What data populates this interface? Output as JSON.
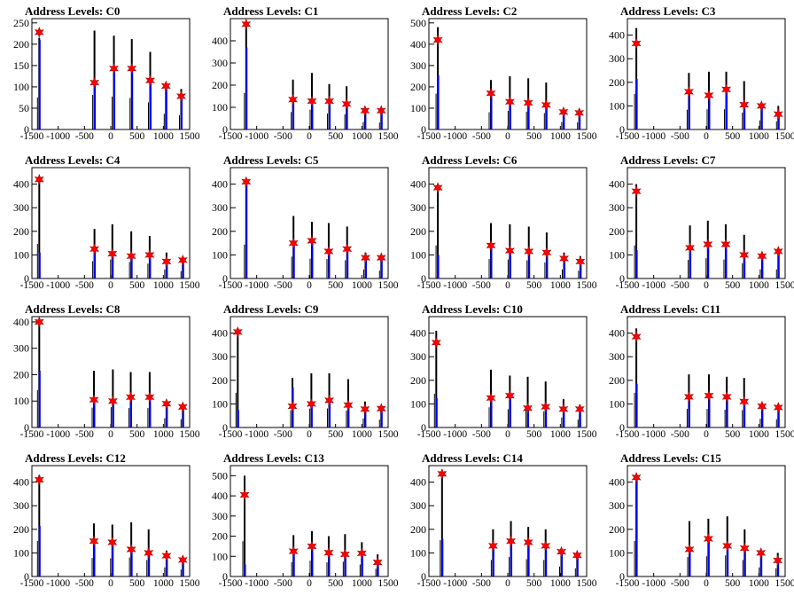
{
  "colors": {
    "black_hist": "#000000",
    "blue_hist": "#0000ff",
    "marker": "#ff0000"
  },
  "chart_data": [
    {
      "type": "bar",
      "title": "Address Levels: C0",
      "xlim": [
        -1500,
        1500
      ],
      "ylim": [
        0,
        260
      ],
      "yticks": [
        0,
        50,
        100,
        150,
        200,
        250
      ],
      "xticks": [
        -1500,
        -1000,
        -500,
        0,
        500,
        1000,
        1500
      ],
      "peaks": [
        {
          "x": -1360,
          "black": 215,
          "blue": 210,
          "marker": 228
        },
        {
          "x": -310,
          "black": 232,
          "blue": 110,
          "marker": 110
        },
        {
          "x": 60,
          "black": 220,
          "blue": 145,
          "marker": 143
        },
        {
          "x": 400,
          "black": 212,
          "blue": 145,
          "marker": 143
        },
        {
          "x": 750,
          "black": 182,
          "blue": 118,
          "marker": 115
        },
        {
          "x": 1050,
          "black": 105,
          "blue": 100,
          "marker": 102
        },
        {
          "x": 1340,
          "black": 95,
          "blue": 75,
          "marker": 78
        }
      ]
    },
    {
      "type": "bar",
      "title": "Address Levels: C1",
      "xlim": [
        -1500,
        1500
      ],
      "ylim": [
        0,
        500
      ],
      "yticks": [
        0,
        100,
        200,
        300,
        400
      ],
      "xticks": [
        -1500,
        -1000,
        -500,
        0,
        500,
        1000,
        1500
      ],
      "peaks": [
        {
          "x": -1200,
          "black": 470,
          "blue": 370,
          "marker": 475
        },
        {
          "x": -310,
          "black": 225,
          "blue": 135,
          "marker": 135
        },
        {
          "x": 50,
          "black": 255,
          "blue": 130,
          "marker": 128
        },
        {
          "x": 380,
          "black": 205,
          "blue": 130,
          "marker": 128
        },
        {
          "x": 710,
          "black": 195,
          "blue": 115,
          "marker": 115
        },
        {
          "x": 1060,
          "black": 95,
          "blue": 90,
          "marker": 85
        },
        {
          "x": 1370,
          "black": 90,
          "blue": 82,
          "marker": 85
        }
      ]
    },
    {
      "type": "bar",
      "title": "Address Levels: C2",
      "xlim": [
        -1500,
        1500
      ],
      "ylim": [
        0,
        520
      ],
      "yticks": [
        0,
        100,
        200,
        300,
        400,
        500
      ],
      "xticks": [
        -1500,
        -1000,
        -500,
        0,
        500,
        1000,
        1500
      ],
      "peaks": [
        {
          "x": -1330,
          "black": 480,
          "blue": 255,
          "marker": 420
        },
        {
          "x": -320,
          "black": 232,
          "blue": 170,
          "marker": 170
        },
        {
          "x": 40,
          "black": 250,
          "blue": 130,
          "marker": 130
        },
        {
          "x": 390,
          "black": 240,
          "blue": 130,
          "marker": 125
        },
        {
          "x": 730,
          "black": 220,
          "blue": 115,
          "marker": 115
        },
        {
          "x": 1060,
          "black": 100,
          "blue": 82,
          "marker": 82
        },
        {
          "x": 1360,
          "black": 95,
          "blue": 75,
          "marker": 78
        }
      ]
    },
    {
      "type": "bar",
      "title": "Address Levels: C3",
      "xlim": [
        -1500,
        1500
      ],
      "ylim": [
        0,
        470
      ],
      "yticks": [
        0,
        100,
        200,
        300,
        400
      ],
      "xticks": [
        -1500,
        -1000,
        -500,
        0,
        500,
        1000,
        1500
      ],
      "peaks": [
        {
          "x": -1330,
          "black": 430,
          "blue": 215,
          "marker": 365
        },
        {
          "x": -330,
          "black": 240,
          "blue": 160,
          "marker": 160
        },
        {
          "x": 50,
          "black": 245,
          "blue": 150,
          "marker": 145
        },
        {
          "x": 380,
          "black": 245,
          "blue": 170,
          "marker": 170
        },
        {
          "x": 720,
          "black": 205,
          "blue": 105,
          "marker": 105
        },
        {
          "x": 1050,
          "black": 110,
          "blue": 100,
          "marker": 100
        },
        {
          "x": 1370,
          "black": 100,
          "blue": 65,
          "marker": 65
        }
      ]
    },
    {
      "type": "bar",
      "title": "Address Levels: C4",
      "xlim": [
        -1500,
        1500
      ],
      "ylim": [
        0,
        470
      ],
      "yticks": [
        0,
        100,
        200,
        300,
        400
      ],
      "xticks": [
        -1500,
        -1000,
        -500,
        0,
        500,
        1000,
        1500
      ],
      "peaks": [
        {
          "x": -1360,
          "black": 420,
          "blue": 110,
          "marker": 420
        },
        {
          "x": -310,
          "black": 210,
          "blue": 120,
          "marker": 125
        },
        {
          "x": 30,
          "black": 230,
          "blue": 110,
          "marker": 105
        },
        {
          "x": 390,
          "black": 200,
          "blue": 95,
          "marker": 95
        },
        {
          "x": 740,
          "black": 180,
          "blue": 100,
          "marker": 100
        },
        {
          "x": 1060,
          "black": 110,
          "blue": 75,
          "marker": 72
        },
        {
          "x": 1370,
          "black": 90,
          "blue": 80,
          "marker": 78
        }
      ]
    },
    {
      "type": "bar",
      "title": "Address Levels: C5",
      "xlim": [
        -1500,
        1500
      ],
      "ylim": [
        0,
        470
      ],
      "yticks": [
        0,
        100,
        200,
        300,
        400
      ],
      "xticks": [
        -1500,
        -1000,
        -500,
        0,
        500,
        1000,
        1500
      ],
      "peaks": [
        {
          "x": -1200,
          "black": 410,
          "blue": 400,
          "marker": 410
        },
        {
          "x": -300,
          "black": 265,
          "blue": 150,
          "marker": 150
        },
        {
          "x": 50,
          "black": 240,
          "blue": 160,
          "marker": 160
        },
        {
          "x": 370,
          "black": 235,
          "blue": 115,
          "marker": 115
        },
        {
          "x": 720,
          "black": 220,
          "blue": 125,
          "marker": 125
        },
        {
          "x": 1070,
          "black": 110,
          "blue": 90,
          "marker": 88
        },
        {
          "x": 1370,
          "black": 95,
          "blue": 85,
          "marker": 88
        }
      ]
    },
    {
      "type": "bar",
      "title": "Address Levels: C6",
      "xlim": [
        -1500,
        1500
      ],
      "ylim": [
        0,
        470
      ],
      "yticks": [
        0,
        100,
        200,
        300,
        400
      ],
      "xticks": [
        -1500,
        -1000,
        -500,
        0,
        500,
        1000,
        1500
      ],
      "peaks": [
        {
          "x": -1330,
          "black": 400,
          "blue": 100,
          "marker": 385
        },
        {
          "x": -320,
          "black": 235,
          "blue": 140,
          "marker": 140
        },
        {
          "x": 40,
          "black": 230,
          "blue": 120,
          "marker": 118
        },
        {
          "x": 400,
          "black": 220,
          "blue": 115,
          "marker": 115
        },
        {
          "x": 740,
          "black": 195,
          "blue": 110,
          "marker": 110
        },
        {
          "x": 1070,
          "black": 110,
          "blue": 85,
          "marker": 85
        },
        {
          "x": 1380,
          "black": 95,
          "blue": 75,
          "marker": 72
        }
      ]
    },
    {
      "type": "bar",
      "title": "Address Levels: C7",
      "xlim": [
        -1500,
        1500
      ],
      "ylim": [
        0,
        470
      ],
      "yticks": [
        0,
        100,
        200,
        300,
        400
      ],
      "xticks": [
        -1500,
        -1000,
        -500,
        0,
        500,
        1000,
        1500
      ],
      "peaks": [
        {
          "x": -1330,
          "black": 400,
          "blue": 120,
          "marker": 370
        },
        {
          "x": -310,
          "black": 225,
          "blue": 130,
          "marker": 130
        },
        {
          "x": 30,
          "black": 245,
          "blue": 145,
          "marker": 145
        },
        {
          "x": 370,
          "black": 230,
          "blue": 145,
          "marker": 145
        },
        {
          "x": 720,
          "black": 185,
          "blue": 100,
          "marker": 100
        },
        {
          "x": 1060,
          "black": 110,
          "blue": 95,
          "marker": 95
        },
        {
          "x": 1370,
          "black": 110,
          "blue": 115,
          "marker": 115
        }
      ]
    },
    {
      "type": "bar",
      "title": "Address Levels: C8",
      "xlim": [
        -1500,
        1500
      ],
      "ylim": [
        0,
        420
      ],
      "yticks": [
        0,
        100,
        200,
        300,
        400
      ],
      "xticks": [
        -1500,
        -1000,
        -500,
        0,
        500,
        1000,
        1500
      ],
      "peaks": [
        {
          "x": -1360,
          "black": 405,
          "blue": 215,
          "marker": 400
        },
        {
          "x": -320,
          "black": 215,
          "blue": 105,
          "marker": 105
        },
        {
          "x": 40,
          "black": 220,
          "blue": 100,
          "marker": 100
        },
        {
          "x": 380,
          "black": 210,
          "blue": 115,
          "marker": 115
        },
        {
          "x": 740,
          "black": 210,
          "blue": 115,
          "marker": 115
        },
        {
          "x": 1060,
          "black": 100,
          "blue": 90,
          "marker": 90
        },
        {
          "x": 1370,
          "black": 90,
          "blue": 80,
          "marker": 78
        }
      ]
    },
    {
      "type": "bar",
      "title": "Address Levels: C9",
      "xlim": [
        -1500,
        1500
      ],
      "ylim": [
        0,
        470
      ],
      "yticks": [
        0,
        100,
        200,
        300,
        400
      ],
      "xticks": [
        -1500,
        -1000,
        -500,
        0,
        500,
        1000,
        1500
      ],
      "peaks": [
        {
          "x": -1360,
          "black": 420,
          "blue": 75,
          "marker": 405
        },
        {
          "x": -320,
          "black": 210,
          "blue": 170,
          "marker": 90
        },
        {
          "x": 40,
          "black": 230,
          "blue": 100,
          "marker": 100
        },
        {
          "x": 380,
          "black": 230,
          "blue": 115,
          "marker": 115
        },
        {
          "x": 740,
          "black": 205,
          "blue": 95,
          "marker": 95
        },
        {
          "x": 1060,
          "black": 110,
          "blue": 80,
          "marker": 78
        },
        {
          "x": 1370,
          "black": 95,
          "blue": 80,
          "marker": 80
        }
      ]
    },
    {
      "type": "bar",
      "title": "Address Levels: C10",
      "xlim": [
        -1500,
        1500
      ],
      "ylim": [
        0,
        470
      ],
      "yticks": [
        0,
        100,
        200,
        300,
        400
      ],
      "xticks": [
        -1500,
        -1000,
        -500,
        0,
        500,
        1000,
        1500
      ],
      "peaks": [
        {
          "x": -1360,
          "black": 410,
          "blue": 125,
          "marker": 360
        },
        {
          "x": -320,
          "black": 245,
          "blue": 130,
          "marker": 125
        },
        {
          "x": 40,
          "black": 220,
          "blue": 135,
          "marker": 135
        },
        {
          "x": 380,
          "black": 215,
          "blue": 85,
          "marker": 82
        },
        {
          "x": 720,
          "black": 195,
          "blue": 90,
          "marker": 88
        },
        {
          "x": 1060,
          "black": 120,
          "blue": 80,
          "marker": 78
        },
        {
          "x": 1370,
          "black": 95,
          "blue": 80,
          "marker": 78
        }
      ]
    },
    {
      "type": "bar",
      "title": "Address Levels: C11",
      "xlim": [
        -1500,
        1500
      ],
      "ylim": [
        0,
        470
      ],
      "yticks": [
        0,
        100,
        200,
        300,
        400
      ],
      "xticks": [
        -1500,
        -1000,
        -500,
        0,
        500,
        1000,
        1500
      ],
      "peaks": [
        {
          "x": -1330,
          "black": 420,
          "blue": 185,
          "marker": 385
        },
        {
          "x": -330,
          "black": 225,
          "blue": 130,
          "marker": 130
        },
        {
          "x": 50,
          "black": 225,
          "blue": 135,
          "marker": 135
        },
        {
          "x": 390,
          "black": 215,
          "blue": 130,
          "marker": 130
        },
        {
          "x": 720,
          "black": 210,
          "blue": 110,
          "marker": 110
        },
        {
          "x": 1060,
          "black": 105,
          "blue": 90,
          "marker": 90
        },
        {
          "x": 1370,
          "black": 100,
          "blue": 85,
          "marker": 85
        }
      ]
    },
    {
      "type": "bar",
      "title": "Address Levels: C12",
      "xlim": [
        -1500,
        1500
      ],
      "ylim": [
        0,
        470
      ],
      "yticks": [
        0,
        100,
        200,
        300,
        400
      ],
      "xticks": [
        -1500,
        -1000,
        -500,
        0,
        500,
        1000,
        1500
      ],
      "peaks": [
        {
          "x": -1360,
          "black": 430,
          "blue": 215,
          "marker": 410
        },
        {
          "x": -320,
          "black": 225,
          "blue": 150,
          "marker": 150
        },
        {
          "x": 30,
          "black": 220,
          "blue": 145,
          "marker": 145
        },
        {
          "x": 390,
          "black": 230,
          "blue": 115,
          "marker": 115
        },
        {
          "x": 720,
          "black": 200,
          "blue": 100,
          "marker": 100
        },
        {
          "x": 1060,
          "black": 110,
          "blue": 90,
          "marker": 88
        },
        {
          "x": 1370,
          "black": 85,
          "blue": 70,
          "marker": 70
        }
      ]
    },
    {
      "type": "bar",
      "title": "Address Levels: C13",
      "xlim": [
        -1500,
        1500
      ],
      "ylim": [
        0,
        550
      ],
      "yticks": [
        0,
        100,
        200,
        300,
        400,
        500
      ],
      "xticks": [
        -1500,
        -1000,
        -500,
        0,
        500,
        1000,
        1500
      ],
      "peaks": [
        {
          "x": -1230,
          "black": 500,
          "blue": 60,
          "marker": 405
        },
        {
          "x": -300,
          "black": 205,
          "blue": 125,
          "marker": 125
        },
        {
          "x": 50,
          "black": 225,
          "blue": 150,
          "marker": 150
        },
        {
          "x": 370,
          "black": 200,
          "blue": 120,
          "marker": 118
        },
        {
          "x": 680,
          "black": 210,
          "blue": 110,
          "marker": 110
        },
        {
          "x": 1000,
          "black": 170,
          "blue": 115,
          "marker": 115
        },
        {
          "x": 1300,
          "black": 110,
          "blue": 70,
          "marker": 70
        }
      ]
    },
    {
      "type": "bar",
      "title": "Address Levels: C14",
      "xlim": [
        -1500,
        1500
      ],
      "ylim": [
        0,
        470
      ],
      "yticks": [
        0,
        100,
        200,
        300,
        400
      ],
      "xticks": [
        -1500,
        -1000,
        -500,
        0,
        500,
        1000,
        1500
      ],
      "peaks": [
        {
          "x": -1250,
          "black": 440,
          "blue": 160,
          "marker": 435
        },
        {
          "x": -280,
          "black": 200,
          "blue": 130,
          "marker": 130
        },
        {
          "x": 60,
          "black": 235,
          "blue": 150,
          "marker": 150
        },
        {
          "x": 390,
          "black": 210,
          "blue": 145,
          "marker": 145
        },
        {
          "x": 720,
          "black": 200,
          "blue": 130,
          "marker": 130
        },
        {
          "x": 1020,
          "black": 120,
          "blue": 105,
          "marker": 105
        },
        {
          "x": 1320,
          "black": 100,
          "blue": 90,
          "marker": 90
        }
      ]
    },
    {
      "type": "bar",
      "title": "Address Levels: C15",
      "xlim": [
        -1500,
        1500
      ],
      "ylim": [
        0,
        470
      ],
      "yticks": [
        0,
        100,
        200,
        300,
        400
      ],
      "xticks": [
        -1500,
        -1000,
        -500,
        0,
        500,
        1000,
        1500
      ],
      "peaks": [
        {
          "x": -1330,
          "black": 430,
          "blue": 410,
          "marker": 420
        },
        {
          "x": -320,
          "black": 235,
          "blue": 115,
          "marker": 115
        },
        {
          "x": 40,
          "black": 245,
          "blue": 160,
          "marker": 160
        },
        {
          "x": 400,
          "black": 255,
          "blue": 130,
          "marker": 130
        },
        {
          "x": 730,
          "black": 200,
          "blue": 120,
          "marker": 120
        },
        {
          "x": 1040,
          "black": 110,
          "blue": 100,
          "marker": 100
        },
        {
          "x": 1360,
          "black": 100,
          "blue": 65,
          "marker": 68
        }
      ]
    }
  ]
}
